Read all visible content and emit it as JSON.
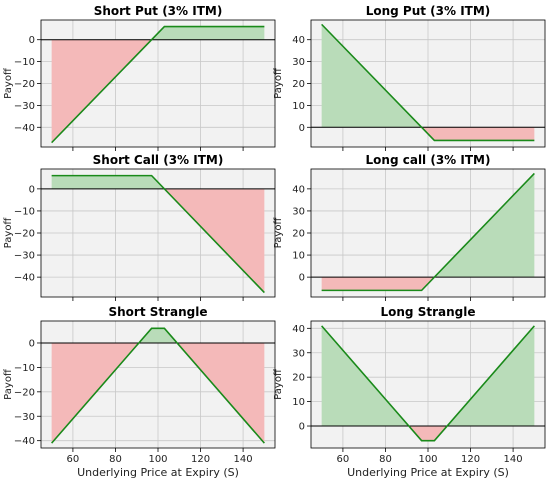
{
  "chart_data": [
    {
      "type": "area",
      "title": "Short Put (3% ITM)",
      "xlabel": "",
      "ylabel": "Payoff",
      "xlim": [
        45,
        155
      ],
      "ylim": [
        -49,
        9
      ],
      "xticks": [
        60,
        80,
        100,
        120,
        140
      ],
      "yticks": [
        0,
        -10,
        -20,
        -30,
        -40
      ],
      "ytick_labels": [
        "0",
        "−10",
        "−20",
        "−30",
        "−40"
      ],
      "show_xtick_labels": false,
      "x": [
        50,
        103,
        150
      ],
      "y": [
        -47,
        6,
        6
      ],
      "grid": true
    },
    {
      "type": "area",
      "title": "Long Put (3% ITM)",
      "xlabel": "",
      "ylabel": "Payoff",
      "xlim": [
        45,
        155
      ],
      "ylim": [
        -9,
        49
      ],
      "xticks": [
        60,
        80,
        100,
        120,
        140
      ],
      "yticks": [
        0,
        10,
        20,
        30,
        40
      ],
      "ytick_labels": [
        "0",
        "10",
        "20",
        "30",
        "40"
      ],
      "show_xtick_labels": false,
      "x": [
        50,
        103,
        150
      ],
      "y": [
        47,
        -6,
        -6
      ],
      "grid": true
    },
    {
      "type": "area",
      "title": "Short Call (3% ITM)",
      "xlabel": "",
      "ylabel": "Payoff",
      "xlim": [
        45,
        155
      ],
      "ylim": [
        -49,
        9
      ],
      "xticks": [
        60,
        80,
        100,
        120,
        140
      ],
      "yticks": [
        0,
        -10,
        -20,
        -30,
        -40
      ],
      "ytick_labels": [
        "0",
        "−10",
        "−20",
        "−30",
        "−40"
      ],
      "show_xtick_labels": false,
      "x": [
        50,
        97,
        150
      ],
      "y": [
        6,
        6,
        -47
      ],
      "grid": true
    },
    {
      "type": "area",
      "title": "Long call (3% ITM)",
      "xlabel": "",
      "ylabel": "Payoff",
      "xlim": [
        45,
        155
      ],
      "ylim": [
        -9,
        49
      ],
      "xticks": [
        60,
        80,
        100,
        120,
        140
      ],
      "yticks": [
        0,
        10,
        20,
        30,
        40
      ],
      "ytick_labels": [
        "0",
        "10",
        "20",
        "30",
        "40"
      ],
      "show_xtick_labels": false,
      "x": [
        50,
        97,
        150
      ],
      "y": [
        -6,
        -6,
        47
      ],
      "grid": true
    },
    {
      "type": "area",
      "title": "Short Strangle",
      "xlabel": "Underlying Price at Expiry (S)",
      "ylabel": "Payoff",
      "xlim": [
        45,
        155
      ],
      "ylim": [
        -43,
        9
      ],
      "xticks": [
        60,
        80,
        100,
        120,
        140
      ],
      "yticks": [
        0,
        -10,
        -20,
        -30,
        -40
      ],
      "ytick_labels": [
        "0",
        "−10",
        "−20",
        "−30",
        "−40"
      ],
      "show_xtick_labels": true,
      "x": [
        50,
        97,
        103,
        150
      ],
      "y": [
        -41,
        6,
        6,
        -41
      ],
      "grid": true
    },
    {
      "type": "area",
      "title": "Long Strangle",
      "xlabel": "Underlying Price at Expiry (S)",
      "ylabel": "Payoff",
      "xlim": [
        45,
        155
      ],
      "ylim": [
        -9,
        43
      ],
      "xticks": [
        60,
        80,
        100,
        120,
        140
      ],
      "yticks": [
        0,
        10,
        20,
        30,
        40
      ],
      "ytick_labels": [
        "0",
        "10",
        "20",
        "30",
        "40"
      ],
      "show_xtick_labels": true,
      "x": [
        50,
        97,
        103,
        150
      ],
      "y": [
        41,
        -6,
        -6,
        41
      ],
      "grid": true
    }
  ],
  "colors": {
    "line": "#1a8a1a",
    "profit_fill": "#b9dcb9",
    "loss_fill": "#f4b9b9",
    "axes_bg": "#f2f2f2",
    "grid": "#c8c8c8",
    "zero_line": "#000000"
  }
}
